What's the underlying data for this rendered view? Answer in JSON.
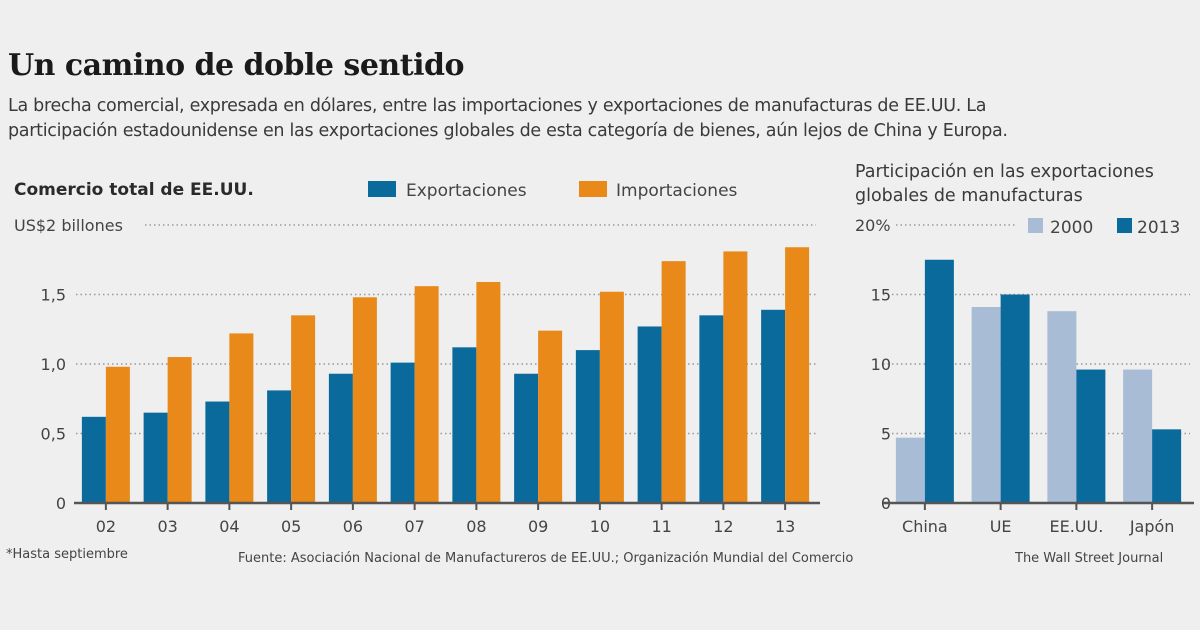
{
  "header": {
    "title": "Un camino de doble sentido",
    "subtitle_line1": "La brecha comercial, expresada en dólares, entre las importaciones y exportaciones de manufacturas de EE.UU. La",
    "subtitle_line2": "participación estadounidense en las exportaciones globales de esta categoría de bienes, aún lejos de China y Europa."
  },
  "footer": {
    "note": "*Hasta septiembre",
    "source": "Fuente: Asociación Nacional de Manufactureros de EE.UU.; Organización Mundial del Comercio",
    "credit": "The Wall Street Journal"
  },
  "colors": {
    "exports": "#0b6a9c",
    "imports": "#e8891a",
    "year2000": "#a9bcd6",
    "year2013": "#0b6a9c",
    "grid": "#999999",
    "axis": "#555555"
  },
  "chart_data": [
    {
      "type": "bar",
      "title": "Comercio total de EE.UU.",
      "ylabel": "US$2 billones",
      "xlabel": "",
      "categories": [
        "02",
        "03",
        "04",
        "05",
        "06",
        "07",
        "08",
        "09",
        "10",
        "11",
        "12",
        "13"
      ],
      "series": [
        {
          "name": "Exportaciones",
          "values": [
            0.62,
            0.65,
            0.73,
            0.81,
            0.93,
            1.01,
            1.12,
            0.93,
            1.1,
            1.27,
            1.35,
            1.39
          ]
        },
        {
          "name": "Importaciones",
          "values": [
            0.98,
            1.05,
            1.22,
            1.35,
            1.48,
            1.56,
            1.59,
            1.24,
            1.52,
            1.74,
            1.81,
            1.84
          ]
        }
      ],
      "ylim": [
        0,
        2
      ],
      "yticks": [
        0,
        0.5,
        1.0,
        1.5,
        2
      ],
      "ytick_labels": [
        "0",
        "0,5",
        "1,0",
        "1,5",
        "US$2 billones"
      ],
      "grid": true,
      "legend": "top-center"
    },
    {
      "type": "bar",
      "title": "Participación en las exportaciones globales de manufacturas",
      "title_line1": "Participación en las exportaciones",
      "title_line2": "globales de manufacturas",
      "ylabel": "",
      "xlabel": "",
      "categories": [
        "China",
        "UE",
        "EE.UU.",
        "Japón"
      ],
      "series": [
        {
          "name": "2000",
          "values": [
            4.7,
            14.1,
            13.8,
            9.6
          ]
        },
        {
          "name": "2013",
          "values": [
            17.5,
            15.0,
            9.6,
            5.3
          ]
        }
      ],
      "ylim": [
        0,
        20
      ],
      "yticks": [
        0,
        5,
        10,
        15,
        20
      ],
      "ytick_labels": [
        "0",
        "5",
        "10",
        "15",
        "20%"
      ],
      "grid": true,
      "legend": "top-right"
    }
  ]
}
